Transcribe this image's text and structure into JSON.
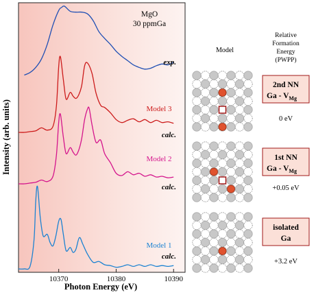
{
  "chart_data": {
    "type": "line",
    "xlabel": "Photon Energy (eV)",
    "ylabel": "Intensity (arb. units)",
    "x_ticks": [
      10370,
      10380,
      10390
    ],
    "xlim": [
      10363,
      10392
    ],
    "grid": false,
    "annotations": {
      "sample": "MgO",
      "concentration": "30 ppmGa"
    },
    "series": [
      {
        "label": "exp.",
        "color": "#1f4fb4",
        "points": [
          [
            10364,
            0.19
          ],
          [
            10365,
            0.22
          ],
          [
            10366,
            0.28
          ],
          [
            10367,
            0.38
          ],
          [
            10368,
            0.55
          ],
          [
            10369,
            0.78
          ],
          [
            10370,
            0.95
          ],
          [
            10370.5,
            0.985
          ],
          [
            10371,
            1.0
          ],
          [
            10372,
            0.94
          ],
          [
            10373,
            0.93
          ],
          [
            10374,
            0.93
          ],
          [
            10375,
            0.91
          ],
          [
            10376,
            0.83
          ],
          [
            10377,
            0.7
          ],
          [
            10378,
            0.62
          ],
          [
            10379,
            0.55
          ],
          [
            10380,
            0.47
          ],
          [
            10381,
            0.41
          ],
          [
            10382,
            0.36
          ],
          [
            10383,
            0.31
          ],
          [
            10384,
            0.28
          ],
          [
            10385,
            0.26
          ],
          [
            10386,
            0.27
          ],
          [
            10387,
            0.3
          ],
          [
            10388,
            0.32
          ],
          [
            10389,
            0.31
          ],
          [
            10390,
            0.34
          ]
        ]
      },
      {
        "label": "Model 3",
        "tag": "calc.",
        "color": "#cc1a1a",
        "points": [
          [
            10363,
            0.0
          ],
          [
            10364,
            0.0
          ],
          [
            10365,
            0.01
          ],
          [
            10366,
            0.02
          ],
          [
            10367,
            0.06
          ],
          [
            10368,
            0.03
          ],
          [
            10369,
            0.08
          ],
          [
            10369.6,
            0.35
          ],
          [
            10370,
            0.88
          ],
          [
            10370.3,
            1.0
          ],
          [
            10370.8,
            0.7
          ],
          [
            10371.3,
            0.44
          ],
          [
            10372,
            0.53
          ],
          [
            10372.5,
            0.48
          ],
          [
            10373,
            0.45
          ],
          [
            10373.5,
            0.5
          ],
          [
            10374,
            0.62
          ],
          [
            10374.5,
            0.88
          ],
          [
            10375,
            0.92
          ],
          [
            10375.8,
            0.78
          ],
          [
            10376.5,
            0.52
          ],
          [
            10377.3,
            0.36
          ],
          [
            10378,
            0.33
          ],
          [
            10379,
            0.26
          ],
          [
            10380,
            0.17
          ],
          [
            10381,
            0.13
          ],
          [
            10382,
            0.16
          ],
          [
            10383,
            0.18
          ],
          [
            10384,
            0.14
          ],
          [
            10385,
            0.17
          ],
          [
            10386,
            0.13
          ],
          [
            10387,
            0.16
          ],
          [
            10388,
            0.13
          ],
          [
            10389,
            0.14
          ],
          [
            10390,
            0.12
          ]
        ]
      },
      {
        "label": "Model 2",
        "tag": "calc.",
        "color": "#d4148c",
        "points": [
          [
            10363,
            0.0
          ],
          [
            10364,
            0.0
          ],
          [
            10365,
            0.01
          ],
          [
            10366,
            0.02
          ],
          [
            10367,
            0.05
          ],
          [
            10368,
            0.03
          ],
          [
            10369,
            0.1
          ],
          [
            10369.6,
            0.38
          ],
          [
            10370,
            0.82
          ],
          [
            10370.3,
            0.92
          ],
          [
            10370.8,
            0.62
          ],
          [
            10371.3,
            0.4
          ],
          [
            10372,
            0.48
          ],
          [
            10372.5,
            0.42
          ],
          [
            10373,
            0.38
          ],
          [
            10373.5,
            0.45
          ],
          [
            10374,
            0.6
          ],
          [
            10374.5,
            0.85
          ],
          [
            10375,
            0.99
          ],
          [
            10375.3,
            1.0
          ],
          [
            10375.8,
            0.78
          ],
          [
            10376.5,
            0.55
          ],
          [
            10377.3,
            0.58
          ],
          [
            10378,
            0.4
          ],
          [
            10379,
            0.28
          ],
          [
            10380,
            0.14
          ],
          [
            10381,
            0.11
          ],
          [
            10382,
            0.16
          ],
          [
            10383,
            0.12
          ],
          [
            10384,
            0.14
          ],
          [
            10385,
            0.1
          ],
          [
            10386,
            0.12
          ],
          [
            10387,
            0.09
          ],
          [
            10388,
            0.1
          ],
          [
            10389,
            0.08
          ],
          [
            10390,
            0.09
          ]
        ]
      },
      {
        "label": "Model 1",
        "tag": "calc.",
        "color": "#1a82d2",
        "points": [
          [
            10363,
            0.0
          ],
          [
            10364,
            0.0
          ],
          [
            10365,
            0.03
          ],
          [
            10365.7,
            0.35
          ],
          [
            10366,
            0.82
          ],
          [
            10366.3,
            1.0
          ],
          [
            10366.8,
            0.62
          ],
          [
            10367.3,
            0.4
          ],
          [
            10368,
            0.42
          ],
          [
            10368.5,
            0.32
          ],
          [
            10369,
            0.28
          ],
          [
            10369.5,
            0.4
          ],
          [
            10370,
            0.58
          ],
          [
            10370.4,
            0.6
          ],
          [
            10370.8,
            0.42
          ],
          [
            10371.3,
            0.22
          ],
          [
            10372,
            0.26
          ],
          [
            10372.5,
            0.2
          ],
          [
            10373,
            0.24
          ],
          [
            10373.6,
            0.38
          ],
          [
            10374.2,
            0.3
          ],
          [
            10375,
            0.18
          ],
          [
            10376,
            0.08
          ],
          [
            10377,
            0.09
          ],
          [
            10378,
            0.05
          ],
          [
            10379,
            0.04
          ],
          [
            10380,
            0.02
          ],
          [
            10381,
            0.03
          ],
          [
            10382,
            0.05
          ],
          [
            10383,
            0.03
          ],
          [
            10384,
            0.05
          ],
          [
            10385,
            0.03
          ],
          [
            10386,
            0.05
          ],
          [
            10387,
            0.03
          ],
          [
            10388,
            0.04
          ],
          [
            10389,
            0.03
          ],
          [
            10390,
            0.04
          ]
        ]
      }
    ]
  },
  "panel": {
    "model_header": "Model",
    "energy_header": [
      "Relative",
      "Formation",
      "Energy",
      "(PWPP)"
    ]
  },
  "models": [
    {
      "box_line1": "2nd NN",
      "box_line2": "Ga - V",
      "box_sub": "Mg",
      "energy": "0 eV"
    },
    {
      "box_line1": "1st NN",
      "box_line2": "Ga - V",
      "box_sub": "Mg",
      "energy": "+0.05 eV"
    },
    {
      "box_line1": "isolated",
      "box_line2": "Ga",
      "box_sub": "",
      "energy": "+3.2 eV"
    }
  ],
  "colors": {
    "ga_atom": "#e0522e",
    "vacancy": "#a01818",
    "box_fill": "#fbe0d8",
    "box_border": "#a01818",
    "plot_bg": "#f6c6bf"
  }
}
